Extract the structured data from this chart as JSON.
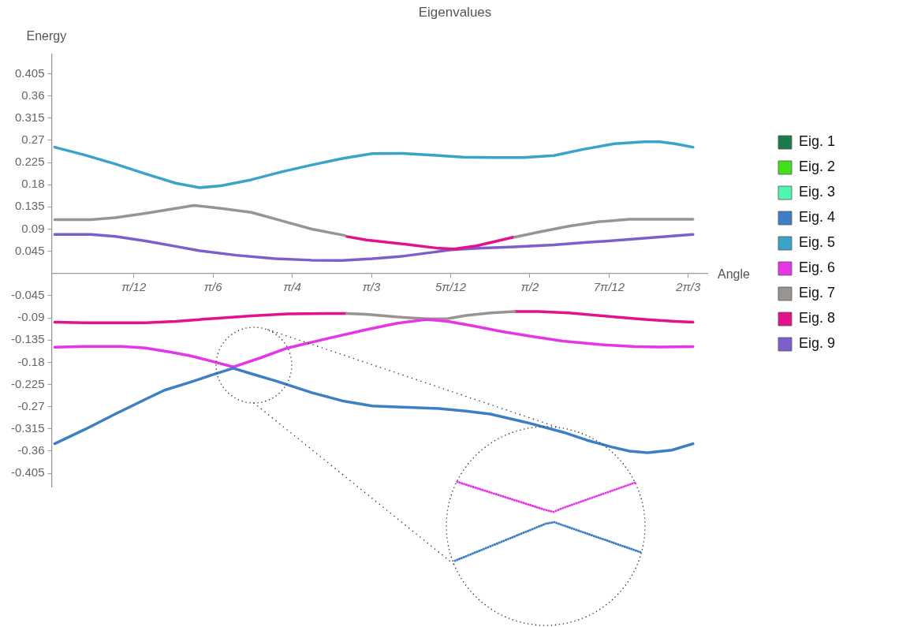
{
  "chart_data": {
    "type": "line",
    "title": "Eigenvalues",
    "xlabel": "Angle",
    "ylabel": "Energy",
    "grid": false,
    "legend": "right",
    "xlim": [
      -0.01,
      2.16
    ],
    "xticks": [
      {
        "value": 0.2618,
        "label": "π/12"
      },
      {
        "value": 0.5236,
        "label": "π/6"
      },
      {
        "value": 0.7854,
        "label": "π/4"
      },
      {
        "value": 1.0472,
        "label": "π/3"
      },
      {
        "value": 1.309,
        "label": "5π/12"
      },
      {
        "value": 1.5708,
        "label": "π/2"
      },
      {
        "value": 1.8326,
        "label": "7π/12"
      },
      {
        "value": 2.0944,
        "label": "2π/3"
      }
    ],
    "ylim": [
      -0.432,
      0.445
    ],
    "yticks": [
      -0.405,
      -0.36,
      -0.315,
      -0.27,
      -0.225,
      -0.18,
      -0.135,
      -0.09,
      -0.045,
      0.045,
      0.09,
      0.135,
      0.18,
      0.225,
      0.27,
      0.315,
      0.36,
      0.405
    ],
    "series": [
      {
        "name": "Eig. 1",
        "color": "#1b7a4a"
      },
      {
        "name": "Eig. 2",
        "color": "#3fe01c"
      },
      {
        "name": "Eig. 3",
        "color": "#4ff5b0"
      },
      {
        "name": "Eig. 4",
        "color": "#3d7fc4",
        "x": [
          0,
          0.1,
          0.2,
          0.3,
          0.363,
          0.45,
          0.526,
          0.59,
          0.66,
          0.73,
          0.85,
          0.95,
          1.05,
          1.15,
          1.27,
          1.36,
          1.44,
          1.56,
          1.68,
          1.76,
          1.84,
          1.9,
          1.96,
          2.04,
          2.11
        ],
        "values": [
          -0.345,
          -0.316,
          -0.285,
          -0.255,
          -0.2366,
          -0.22,
          -0.2045,
          -0.192,
          -0.205,
          -0.2175,
          -0.2415,
          -0.258,
          -0.2686,
          -0.271,
          -0.2737,
          -0.279,
          -0.285,
          -0.302,
          -0.3216,
          -0.338,
          -0.3515,
          -0.36,
          -0.3633,
          -0.358,
          -0.345
        ]
      },
      {
        "name": "Eig. 5",
        "color": "#3ca3c8",
        "x": [
          0,
          0.1,
          0.2,
          0.3,
          0.4,
          0.48,
          0.55,
          0.65,
          0.75,
          0.85,
          0.95,
          1.05,
          1.15,
          1.25,
          1.35,
          1.45,
          1.55,
          1.65,
          1.75,
          1.85,
          1.95,
          2.0,
          2.05,
          2.11
        ],
        "values": [
          0.256,
          0.24,
          0.222,
          0.202,
          0.183,
          0.174,
          0.178,
          0.19,
          0.206,
          0.22,
          0.233,
          0.243,
          0.2435,
          0.24,
          0.236,
          0.235,
          0.235,
          0.239,
          0.252,
          0.263,
          0.267,
          0.267,
          0.263,
          0.256
        ]
      },
      {
        "name": "Eig. 6",
        "color": "#e535e8",
        "x": [
          0,
          0.1,
          0.22,
          0.3,
          0.38,
          0.45,
          0.52,
          0.59,
          0.68,
          0.77,
          0.9,
          1.03,
          1.13,
          1.23,
          1.3,
          1.38,
          1.48,
          1.58,
          1.68,
          1.8,
          1.92,
          2.0,
          2.11
        ],
        "values": [
          -0.1495,
          -0.148,
          -0.148,
          -0.151,
          -0.159,
          -0.167,
          -0.178,
          -0.1895,
          -0.171,
          -0.151,
          -0.132,
          -0.114,
          -0.101,
          -0.0933,
          -0.097,
          -0.106,
          -0.118,
          -0.128,
          -0.137,
          -0.144,
          -0.1484,
          -0.149,
          -0.1484
        ]
      },
      {
        "name": "Eig. 7",
        "color": "#9a9390",
        "x": [
          0,
          0.06,
          0.12,
          0.2,
          0.3,
          0.4,
          0.46,
          0.55,
          0.65,
          0.75,
          0.85,
          0.96,
          null,
          0.965,
          1.03,
          1.13,
          1.23,
          1.3,
          1.36,
          1.44,
          1.52,
          null,
          1.52,
          1.6,
          1.7,
          1.8,
          1.9,
          2.0,
          2.11
        ],
        "values": [
          0.109,
          0.109,
          0.109,
          0.113,
          0.122,
          0.132,
          0.138,
          0.132,
          0.124,
          0.107,
          0.09,
          0.077,
          null,
          -0.081,
          -0.0826,
          -0.088,
          -0.092,
          -0.0915,
          -0.085,
          -0.08,
          -0.077,
          null,
          0.0735,
          0.084,
          0.096,
          0.105,
          0.11,
          0.11,
          0.11
        ]
      },
      {
        "name": "Eig. 8",
        "color": "#e3128a",
        "x": [
          0.965,
          1.03,
          1.15,
          1.27,
          1.32,
          1.394,
          1.516,
          null,
          0,
          0.1,
          0.2,
          0.3,
          0.4,
          0.53,
          0.65,
          0.77,
          0.9,
          0.965,
          null,
          1.52,
          1.6,
          1.7,
          1.84,
          1.95,
          2.05,
          2.11
        ],
        "values": [
          0.075,
          0.068,
          0.06,
          0.051,
          0.0495,
          0.056,
          0.0735,
          null,
          -0.0986,
          -0.1,
          -0.1,
          -0.1,
          -0.097,
          -0.091,
          -0.086,
          -0.082,
          -0.081,
          -0.081,
          null,
          -0.077,
          -0.077,
          -0.08,
          -0.0874,
          -0.093,
          -0.097,
          -0.0986
        ]
      },
      {
        "name": "Eig. 9",
        "color": "#7d5fcc",
        "x": [
          0,
          0.12,
          0.2,
          0.3,
          0.4,
          0.48,
          0.6,
          0.73,
          0.85,
          0.95,
          1.05,
          1.15,
          1.25,
          1.31,
          1.4,
          1.52,
          1.65,
          1.76,
          1.9,
          2.0,
          2.11
        ],
        "values": [
          0.079,
          0.079,
          0.075,
          0.066,
          0.055,
          0.046,
          0.037,
          0.03,
          0.027,
          0.0265,
          0.03,
          0.035,
          0.043,
          0.048,
          0.051,
          0.054,
          0.058,
          0.063,
          0.069,
          0.074,
          0.079
        ]
      }
    ]
  }
}
